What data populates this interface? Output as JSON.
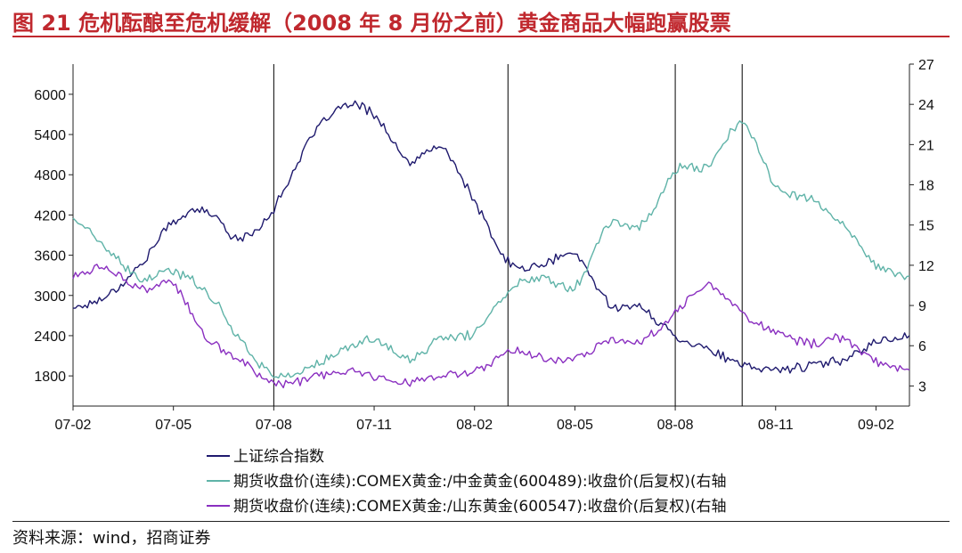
{
  "title": "图 21  危机酝酿至危机缓解（2008 年 8 月份之前）黄金商品大幅跑赢股票",
  "source": "资料来源：wind，招商证券",
  "colors": {
    "title": "#c0282e",
    "shanghai": "#1f1a6e",
    "zhongjin": "#5fb3a8",
    "shandong": "#8a2fc0",
    "event_lines": "#000000"
  },
  "chart_data": {
    "type": "line",
    "x_tick_labels": [
      "07-02",
      "07-05",
      "07-08",
      "07-11",
      "08-02",
      "08-05",
      "08-08",
      "08-11",
      "09-02"
    ],
    "y_left_ticks": [
      1800,
      2400,
      3000,
      3600,
      4200,
      4800,
      5400,
      6000
    ],
    "y_right_ticks": [
      3,
      6,
      9,
      12,
      15,
      18,
      21,
      24,
      27
    ],
    "y_left_range": [
      1350,
      6450
    ],
    "y_right_range": [
      1.5,
      27
    ],
    "event_lines_x": [
      "07-08",
      "08-03",
      "08-08",
      "08-10"
    ],
    "series": [
      {
        "name": "上证综合指数",
        "axis": "left",
        "points": [
          [
            "07-02",
            2820
          ],
          [
            "07-03",
            3000
          ],
          [
            "07-04",
            3450
          ],
          [
            "07-05",
            4100
          ],
          [
            "07-06",
            4250
          ],
          [
            "07-07",
            3850
          ],
          [
            "07-08",
            4300
          ],
          [
            "07-09",
            5250
          ],
          [
            "07-10",
            5800
          ],
          [
            "07-11",
            5700
          ],
          [
            "07-12",
            5000
          ],
          [
            "08-01",
            5200
          ],
          [
            "08-02",
            4400
          ],
          [
            "08-03",
            3500
          ],
          [
            "08-04",
            3450
          ],
          [
            "08-05",
            3600
          ],
          [
            "08-06",
            2900
          ],
          [
            "08-07",
            2800
          ],
          [
            "08-08",
            2400
          ],
          [
            "08-09",
            2200
          ],
          [
            "08-10",
            1950
          ],
          [
            "08-11",
            1900
          ],
          [
            "08-12",
            1950
          ],
          [
            "09-01",
            2050
          ],
          [
            "09-02",
            2300
          ],
          [
            "09-03",
            2400
          ]
        ]
      },
      {
        "name": "期货收盘价(连续):COMEX黄金:/中金黄金(600489):收盘价(后复权)(右轴",
        "axis": "right",
        "points": [
          [
            "07-02",
            15.5
          ],
          [
            "07-03",
            13.2
          ],
          [
            "07-04",
            11.0
          ],
          [
            "07-05",
            11.5
          ],
          [
            "07-06",
            10.0
          ],
          [
            "07-07",
            6.5
          ],
          [
            "07-08",
            3.8
          ],
          [
            "07-09",
            4.3
          ],
          [
            "07-10",
            5.5
          ],
          [
            "07-11",
            6.5
          ],
          [
            "07-12",
            5.0
          ],
          [
            "08-01",
            6.5
          ],
          [
            "08-02",
            7.0
          ],
          [
            "08-03",
            10.0
          ],
          [
            "08-04",
            11.2
          ],
          [
            "08-05",
            10.5
          ],
          [
            "08-06",
            15.0
          ],
          [
            "08-07",
            15.0
          ],
          [
            "08-08",
            19.0
          ],
          [
            "08-09",
            19.5
          ],
          [
            "08-10",
            22.5
          ],
          [
            "08-11",
            18.0
          ],
          [
            "08-12",
            17.0
          ],
          [
            "09-01",
            15.0
          ],
          [
            "09-02",
            12.0
          ],
          [
            "09-03",
            11.2
          ]
        ]
      },
      {
        "name": "期货收盘价(连续):COMEX黄金:/山东黄金(600547):收盘价(后复权)(右轴",
        "axis": "right",
        "points": [
          [
            "07-02",
            11.2
          ],
          [
            "07-03",
            11.8
          ],
          [
            "07-04",
            10.2
          ],
          [
            "07-05",
            10.5
          ],
          [
            "07-06",
            6.5
          ],
          [
            "07-07",
            5.0
          ],
          [
            "07-08",
            3.2
          ],
          [
            "07-09",
            3.5
          ],
          [
            "07-10",
            4.0
          ],
          [
            "07-11",
            3.8
          ],
          [
            "07-12",
            3.3
          ],
          [
            "08-01",
            3.8
          ],
          [
            "08-02",
            4.0
          ],
          [
            "08-03",
            5.5
          ],
          [
            "08-04",
            5.2
          ],
          [
            "08-05",
            5.0
          ],
          [
            "08-06",
            6.5
          ],
          [
            "08-07",
            6.3
          ],
          [
            "08-08",
            8.5
          ],
          [
            "08-09",
            10.5
          ],
          [
            "08-10",
            8.5
          ],
          [
            "08-11",
            7.0
          ],
          [
            "08-12",
            6.2
          ],
          [
            "09-01",
            6.5
          ],
          [
            "09-02",
            4.8
          ],
          [
            "09-03",
            4.2
          ]
        ]
      }
    ]
  }
}
